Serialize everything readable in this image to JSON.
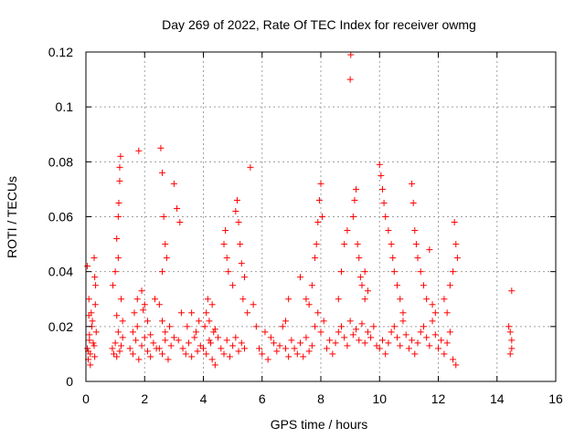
{
  "chart_data": {
    "type": "scatter",
    "title": "Day 269 of 2022, Rate Of TEC Index for receiver owmg",
    "xlabel": "GPS time / hours",
    "ylabel": "ROTI / TECUs",
    "xlim": [
      0,
      16
    ],
    "ylim": [
      0,
      0.12
    ],
    "x_ticks": [
      0,
      2,
      4,
      6,
      8,
      10,
      12,
      14,
      16
    ],
    "y_ticks": [
      0,
      0.02,
      0.04,
      0.06,
      0.08,
      0.1,
      0.12
    ],
    "grid": true,
    "marker": "+",
    "color": "#ff0000",
    "series": [
      {
        "values_x": [
          0.05,
          0.08,
          0.12,
          0.15,
          0.2,
          0.25,
          0.3,
          0.35,
          0.05,
          0.1,
          0.18,
          0.22,
          0.28,
          0.3,
          0.32,
          0.33,
          0.15,
          0.08,
          0.1,
          0.12,
          0.28,
          0.9,
          0.95,
          1.0,
          1.05,
          1.1,
          1.15,
          1.2,
          1.25,
          0.92,
          1.0,
          1.05,
          1.1,
          1.12,
          1.15,
          1.15,
          1.18,
          1.1,
          1.2,
          1.25,
          1.05,
          1.5,
          1.6,
          1.7,
          1.8,
          1.9,
          2.0,
          2.1,
          2.2,
          2.3,
          2.4,
          1.65,
          1.75,
          1.8,
          1.9,
          2.0,
          2.1,
          1.6,
          1.75,
          1.95,
          2.2,
          2.35,
          2.5,
          2.6,
          2.7,
          2.8,
          2.9,
          3.0,
          2.55,
          2.6,
          2.65,
          2.7,
          2.75,
          2.6,
          2.5,
          2.6,
          2.7,
          2.85,
          3.0,
          3.1,
          3.2,
          3.25,
          3.15,
          3.3,
          3.4,
          3.5,
          3.6,
          3.7,
          3.8,
          3.9,
          3.45,
          3.6,
          3.75,
          3.85,
          4.0,
          4.1,
          4.2,
          4.3,
          4.4,
          4.05,
          4.1,
          4.15,
          4.2,
          4.3,
          4.35,
          4.25,
          4.4,
          4.5,
          4.6,
          4.7,
          4.8,
          4.9,
          5.0,
          5.1,
          5.2,
          5.3,
          5.4,
          4.7,
          4.75,
          4.8,
          4.85,
          5.0,
          5.1,
          5.15,
          5.2,
          5.25,
          5.3,
          5.35,
          5.4,
          5.5,
          5.6,
          5.7,
          5.8,
          5.9,
          6.0,
          6.2,
          6.4,
          6.5,
          6.6,
          6.8,
          6.9,
          7.0,
          6.1,
          6.3,
          6.7,
          6.8,
          6.9,
          7.1,
          7.2,
          7.3,
          7.4,
          7.5,
          7.6,
          7.7,
          7.8,
          7.9,
          8.0,
          8.1,
          7.8,
          7.85,
          7.9,
          7.95,
          8.0,
          8.05,
          7.7,
          7.5,
          7.3,
          7.6,
          8.2,
          8.3,
          8.4,
          8.5,
          8.6,
          8.7,
          8.8,
          8.9,
          9.0,
          9.1,
          9.2,
          9.3,
          9.4,
          9.5,
          9.6,
          9.7,
          9.8,
          9.9,
          8.6,
          8.7,
          8.8,
          9.0,
          9.02,
          9.1,
          9.2,
          9.3,
          9.4,
          9.5,
          9.6,
          8.9,
          9.15,
          9.25,
          9.35,
          9.5,
          10.0,
          10.1,
          10.2,
          10.3,
          10.4,
          10.5,
          10.6,
          10.7,
          10.8,
          10.9,
          10.0,
          10.05,
          10.1,
          10.15,
          10.2,
          10.3,
          10.4,
          10.45,
          10.5,
          10.6,
          10.7,
          10.8,
          11.0,
          11.1,
          11.2,
          11.3,
          11.4,
          11.5,
          11.6,
          11.7,
          11.8,
          11.9,
          11.1,
          11.15,
          11.2,
          11.25,
          11.3,
          11.4,
          11.5,
          11.6,
          11.7,
          11.8,
          11.9,
          12.0,
          12.1,
          12.2,
          12.3,
          12.4,
          12.5,
          12.6,
          12.55,
          12.6,
          12.65,
          12.5,
          12.4,
          12.2,
          12.3,
          14.4,
          14.45,
          14.5,
          14.5,
          14.45,
          14.5
        ],
        "values_y": [
          0.012,
          0.008,
          0.015,
          0.01,
          0.02,
          0.014,
          0.009,
          0.018,
          0.042,
          0.03,
          0.025,
          0.022,
          0.045,
          0.038,
          0.028,
          0.035,
          0.006,
          0.011,
          0.024,
          0.017,
          0.013,
          0.012,
          0.01,
          0.014,
          0.009,
          0.018,
          0.011,
          0.013,
          0.016,
          0.035,
          0.04,
          0.052,
          0.06,
          0.065,
          0.073,
          0.078,
          0.082,
          0.045,
          0.03,
          0.022,
          0.024,
          0.012,
          0.01,
          0.015,
          0.008,
          0.013,
          0.016,
          0.011,
          0.009,
          0.014,
          0.012,
          0.025,
          0.03,
          0.084,
          0.033,
          0.028,
          0.022,
          0.018,
          0.02,
          0.026,
          0.017,
          0.03,
          0.012,
          0.01,
          0.015,
          0.008,
          0.013,
          0.016,
          0.085,
          0.076,
          0.06,
          0.05,
          0.045,
          0.04,
          0.028,
          0.022,
          0.018,
          0.02,
          0.072,
          0.063,
          0.058,
          0.025,
          0.015,
          0.012,
          0.01,
          0.014,
          0.009,
          0.016,
          0.011,
          0.013,
          0.02,
          0.025,
          0.018,
          0.022,
          0.012,
          0.01,
          0.015,
          0.008,
          0.006,
          0.02,
          0.025,
          0.03,
          0.022,
          0.028,
          0.018,
          0.014,
          0.019,
          0.016,
          0.012,
          0.01,
          0.015,
          0.009,
          0.013,
          0.016,
          0.011,
          0.014,
          0.012,
          0.05,
          0.055,
          0.045,
          0.04,
          0.035,
          0.062,
          0.066,
          0.058,
          0.05,
          0.043,
          0.03,
          0.038,
          0.025,
          0.078,
          0.028,
          0.02,
          0.012,
          0.01,
          0.008,
          0.014,
          0.011,
          0.013,
          0.012,
          0.009,
          0.015,
          0.018,
          0.016,
          0.02,
          0.022,
          0.03,
          0.012,
          0.01,
          0.014,
          0.009,
          0.016,
          0.011,
          0.013,
          0.02,
          0.025,
          0.018,
          0.022,
          0.045,
          0.05,
          0.058,
          0.066,
          0.072,
          0.06,
          0.035,
          0.03,
          0.038,
          0.028,
          0.012,
          0.015,
          0.01,
          0.014,
          0.018,
          0.02,
          0.016,
          0.013,
          0.022,
          0.017,
          0.019,
          0.015,
          0.021,
          0.014,
          0.018,
          0.016,
          0.02,
          0.013,
          0.03,
          0.04,
          0.05,
          0.11,
          0.119,
          0.06,
          0.07,
          0.045,
          0.035,
          0.04,
          0.033,
          0.055,
          0.066,
          0.05,
          0.038,
          0.03,
          0.012,
          0.015,
          0.01,
          0.014,
          0.018,
          0.02,
          0.016,
          0.013,
          0.022,
          0.017,
          0.079,
          0.075,
          0.07,
          0.065,
          0.06,
          0.055,
          0.05,
          0.045,
          0.04,
          0.035,
          0.03,
          0.025,
          0.012,
          0.015,
          0.01,
          0.014,
          0.018,
          0.02,
          0.016,
          0.013,
          0.022,
          0.017,
          0.072,
          0.065,
          0.055,
          0.05,
          0.045,
          0.04,
          0.035,
          0.03,
          0.048,
          0.028,
          0.025,
          0.012,
          0.015,
          0.01,
          0.014,
          0.018,
          0.008,
          0.006,
          0.058,
          0.05,
          0.045,
          0.04,
          0.035,
          0.03,
          0.025,
          0.02,
          0.018,
          0.015,
          0.012,
          0.01,
          0.033
        ]
      }
    ]
  }
}
